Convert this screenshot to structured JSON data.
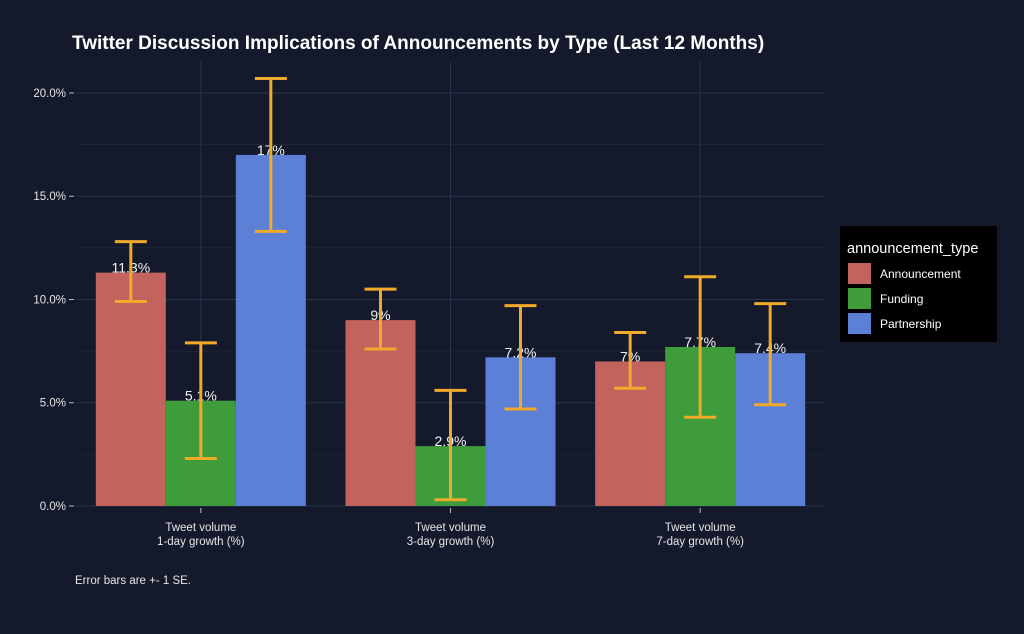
{
  "chart_data": {
    "type": "bar",
    "title": "Twitter Discussion Implications of Announcements by Type (Last 12 Months)",
    "categories": [
      [
        "Tweet volume",
        "1-day growth (%)"
      ],
      [
        "Tweet volume",
        "3-day growth (%)"
      ],
      [
        "Tweet volume",
        "7-day growth (%)"
      ]
    ],
    "series": [
      {
        "name": "Announcement",
        "color": "#c2635e",
        "values": [
          11.3,
          9,
          7
        ],
        "labels": [
          "11.3%",
          "9%",
          "7%"
        ],
        "err_low": [
          9.9,
          7.6,
          5.7
        ],
        "err_high": [
          12.8,
          10.5,
          8.4
        ]
      },
      {
        "name": "Funding",
        "color": "#3e9c3a",
        "values": [
          5.1,
          2.9,
          7.7
        ],
        "labels": [
          "5.1%",
          "2.9%",
          "7.7%"
        ],
        "err_low": [
          2.3,
          0.3,
          4.3
        ],
        "err_high": [
          7.9,
          5.6,
          11.1
        ]
      },
      {
        "name": "Partnership",
        "color": "#5b80d6",
        "values": [
          17,
          7.2,
          7.4
        ],
        "labels": [
          "17%",
          "7.2%",
          "7.4%"
        ],
        "err_low": [
          13.3,
          4.7,
          4.9
        ],
        "err_high": [
          20.7,
          9.7,
          9.8
        ]
      }
    ],
    "ylim": [
      0,
      21.5
    ],
    "yticks": [
      0,
      5,
      10,
      15,
      20
    ],
    "ytick_labels": [
      "0.0%",
      "5.0%",
      "10.0%",
      "15.0%",
      "20.0%"
    ],
    "xlabel": "",
    "ylabel": "",
    "legend": {
      "title": "announcement_type",
      "position": "right"
    },
    "error_bar_color": "#f0a92a",
    "caption": "Error bars are +- 1 SE."
  }
}
